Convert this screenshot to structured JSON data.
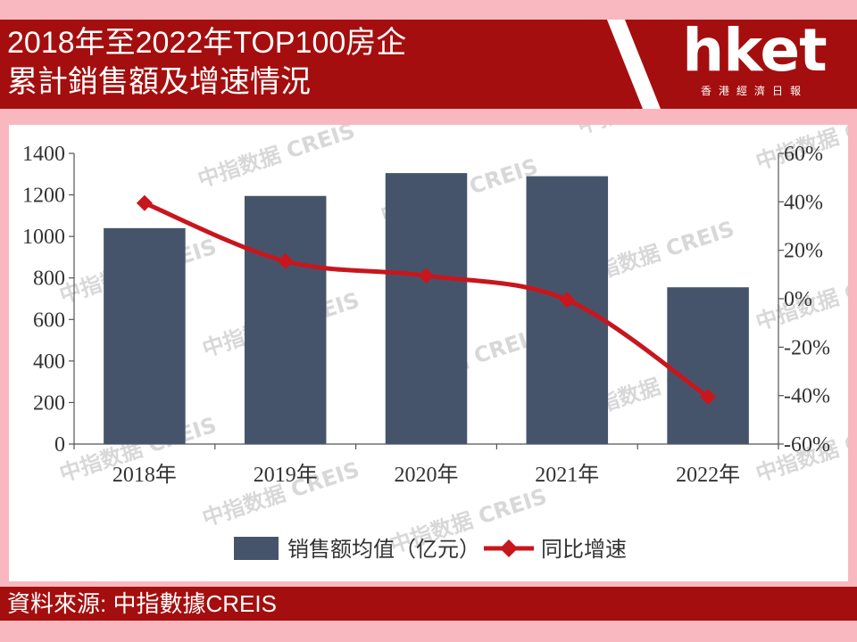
{
  "header": {
    "title_line1": "2018年至2022年TOP100房企",
    "title_line2": "累計銷售額及增速情況",
    "logo_text": "hket",
    "logo_sub": "香港經濟日報"
  },
  "footer": {
    "source": "資料來源: 中指數據CREIS"
  },
  "watermark": "中指数据 CREIS",
  "colors": {
    "bar": "#46546b",
    "line": "#c8161d",
    "header_bg": "#a50e0e",
    "page_bg": "#f9b8bf"
  },
  "chart_data": {
    "type": "bar",
    "categories": [
      "2018年",
      "2019年",
      "2020年",
      "2021年",
      "2022年"
    ],
    "series": [
      {
        "name": "销售额均值（亿元）",
        "type": "bar",
        "axis": "left",
        "values": [
          1040,
          1195,
          1305,
          1290,
          755
        ]
      },
      {
        "name": "同比增速",
        "type": "line",
        "axis": "right",
        "values": [
          39.5,
          15.5,
          9.5,
          -0.5,
          -40.5
        ]
      }
    ],
    "y_left": {
      "ylim": [
        0,
        1400
      ],
      "ticks": [
        "0",
        "200",
        "400",
        "600",
        "800",
        "1000",
        "1200",
        "1400"
      ]
    },
    "y_right": {
      "ylim": [
        -60,
        60
      ],
      "ticks": [
        "-60%",
        "-40%",
        "-20%",
        "0%",
        "20%",
        "40%",
        "60%"
      ]
    },
    "legend_position": "bottom",
    "grid": false
  }
}
